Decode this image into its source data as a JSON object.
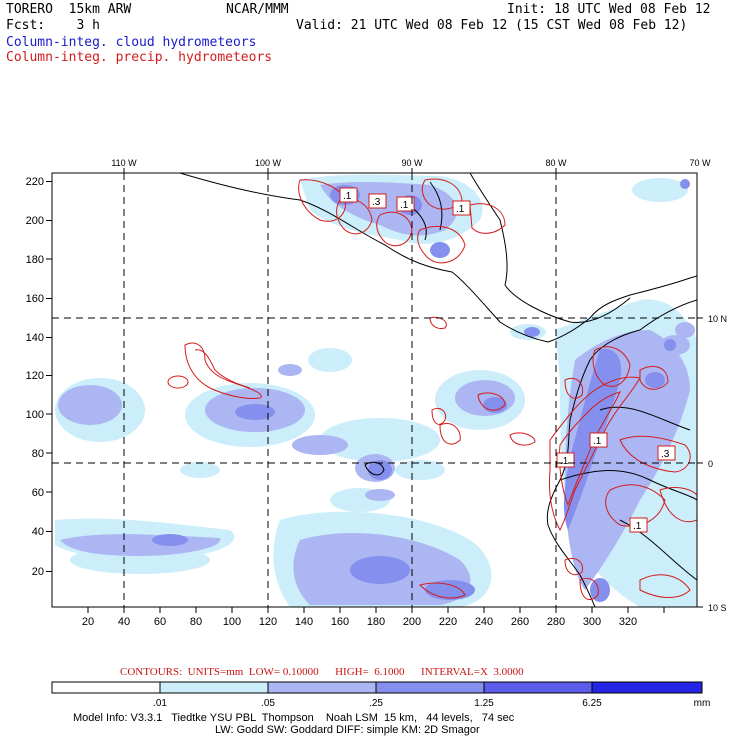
{
  "header": {
    "model_name": "TORERO  15km ARW",
    "center": "NCAR/MMM",
    "init_label": "Init: 18 UTC Wed 08 Feb 12",
    "forecast_label": "Fcst:    3 h",
    "valid_label": "Valid: 21 UTC Wed 08 Feb 12 (15 CST Wed 08 Feb 12)",
    "field1": "Column-integ. cloud hydrometeors",
    "field2": "Column-integ. precip. hydrometeors"
  },
  "map": {
    "top_lon_labels": [
      "110 W",
      "100 W",
      "90 W",
      "80 W",
      "70 W"
    ],
    "right_lat_labels": [
      "10 N",
      "0",
      "10 S"
    ],
    "y_ticks": [
      "20",
      "40",
      "60",
      "80",
      "100",
      "120",
      "140",
      "160",
      "180",
      "200",
      "220"
    ],
    "x_ticks": [
      "20",
      "40",
      "60",
      "80",
      "100",
      "120",
      "140",
      "160",
      "180",
      "200",
      "220",
      "240",
      "260",
      "280",
      "300",
      "320"
    ],
    "contour_labels": [
      ".1",
      ".3",
      ".1",
      ".1",
      ".1",
      ".1",
      ".3",
      ".1"
    ]
  },
  "contours_line": {
    "label": "CONTOURS:  UNITS=mm  LOW= 0.10000      HIGH=  6.1000      INTERVAL=X  3.0000"
  },
  "colorbar": {
    "levels": [
      ".01",
      ".05",
      ".25",
      "1.25",
      "6.25"
    ],
    "unit": "mm",
    "colors": [
      "#ffffff",
      "#cbeefa",
      "#abb6f2",
      "#8590ee",
      "#5c5cea",
      "#2424e4"
    ]
  },
  "model_info": {
    "line1": "Model Info: V3.3.1   Tiedtke YSU PBL  Thompson    Noah LSM  15 km,   44 levels,   74 sec",
    "line2": "LW: Godd SW: Goddard DIFF: simple KM: 2D Smagor"
  },
  "colors": {
    "cloud_light": "#cbeefa",
    "cloud_mid": "#abb6f2",
    "cloud_dark": "#8590ee",
    "precip_contour": "#d41c1c"
  }
}
